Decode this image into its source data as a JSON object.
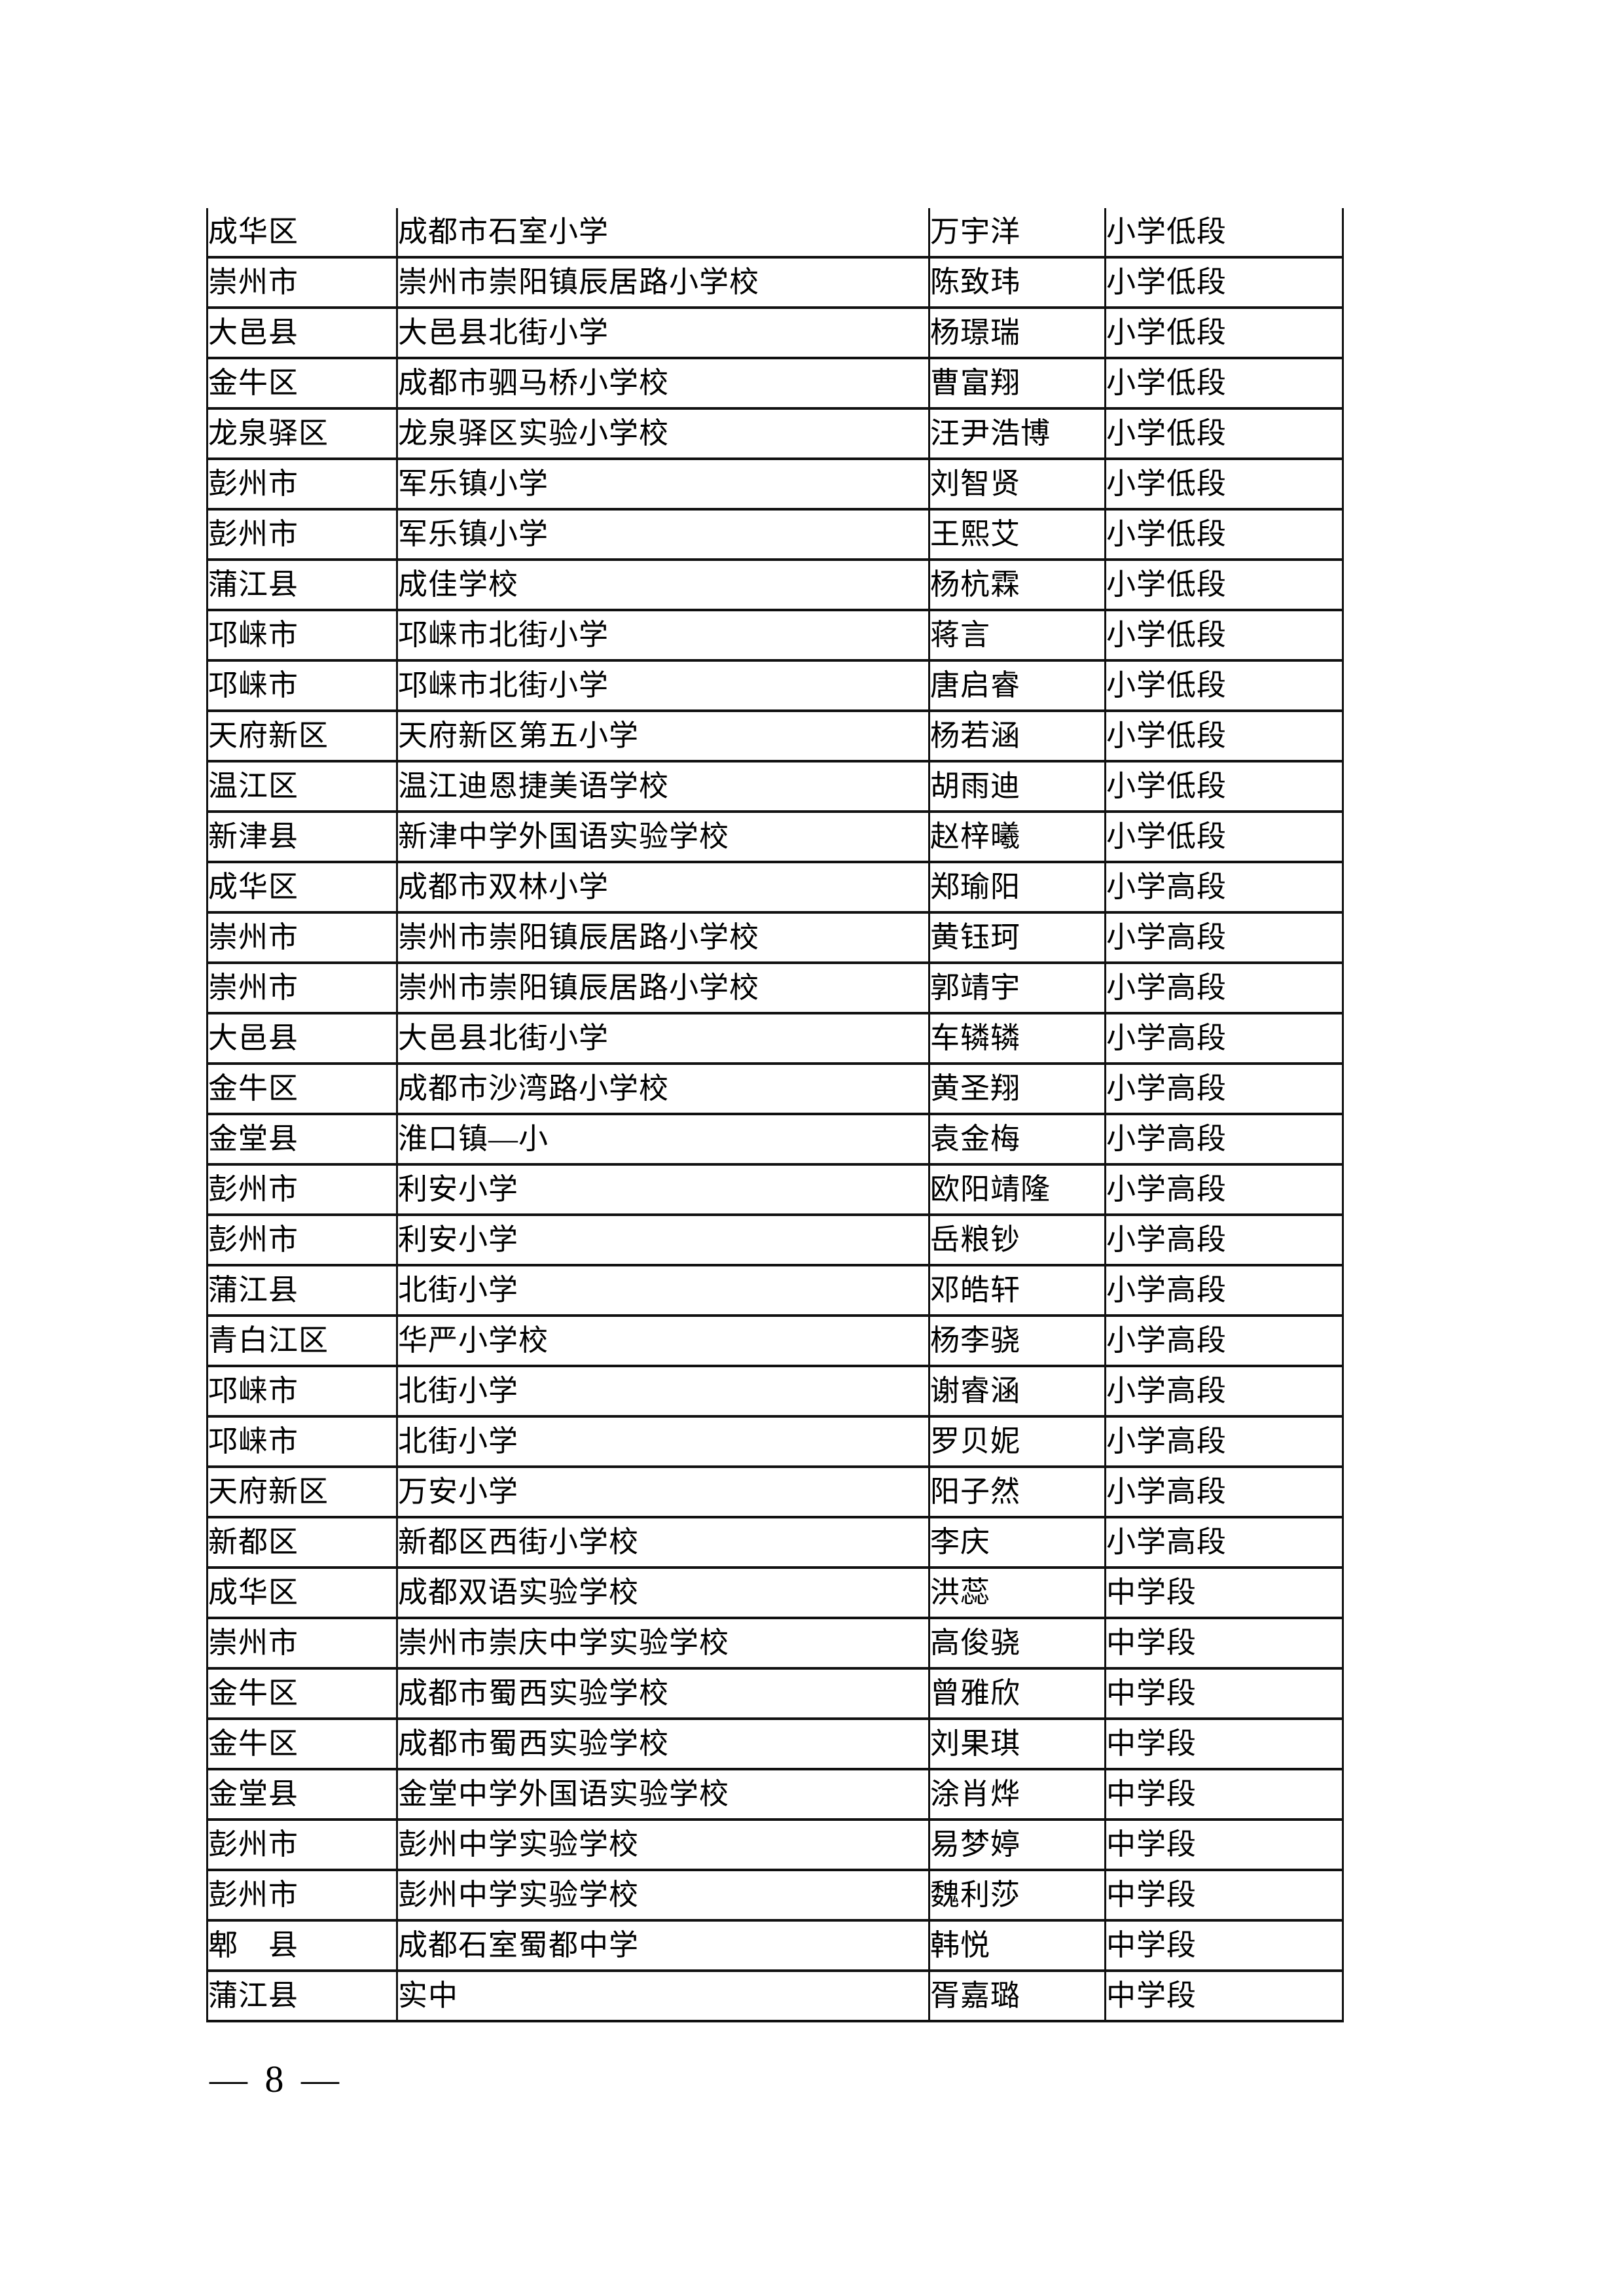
{
  "footer": {
    "page_number": "— 8 —"
  },
  "table": {
    "column_keys": [
      "district",
      "school",
      "name",
      "level"
    ],
    "rows": [
      {
        "district": "成华区",
        "school": "成都市石室小学",
        "name": "万宇洋",
        "level": "小学低段"
      },
      {
        "district": "崇州市",
        "school": "崇州市崇阳镇辰居路小学校",
        "name": "陈致玮",
        "level": "小学低段"
      },
      {
        "district": "大邑县",
        "school": "大邑县北街小学",
        "name": "杨璟瑞",
        "level": "小学低段"
      },
      {
        "district": "金牛区",
        "school": "成都市驷马桥小学校",
        "name": "曹富翔",
        "level": "小学低段"
      },
      {
        "district": "龙泉驿区",
        "school": "龙泉驿区实验小学校",
        "name": "汪尹浩博",
        "level": "小学低段"
      },
      {
        "district": "彭州市",
        "school": "军乐镇小学",
        "name": "刘智贤",
        "level": "小学低段"
      },
      {
        "district": "彭州市",
        "school": "军乐镇小学",
        "name": "王熙艾",
        "level": "小学低段"
      },
      {
        "district": "蒲江县",
        "school": "成佳学校",
        "name": "杨杭霖",
        "level": "小学低段"
      },
      {
        "district": "邛崃市",
        "school": "邛崃市北街小学",
        "name": "蒋言",
        "level": "小学低段"
      },
      {
        "district": "邛崃市",
        "school": "邛崃市北街小学",
        "name": "唐启睿",
        "level": "小学低段"
      },
      {
        "district": "天府新区",
        "school": "天府新区第五小学",
        "name": "杨若涵",
        "level": "小学低段"
      },
      {
        "district": "温江区",
        "school": "温江迪恩捷美语学校",
        "name": "胡雨迪",
        "level": "小学低段"
      },
      {
        "district": "新津县",
        "school": "新津中学外国语实验学校",
        "name": "赵梓曦",
        "level": "小学低段"
      },
      {
        "district": "成华区",
        "school": "成都市双林小学",
        "name": "郑瑜阳",
        "level": "小学高段"
      },
      {
        "district": "崇州市",
        "school": "崇州市崇阳镇辰居路小学校",
        "name": "黄钰珂",
        "level": "小学高段"
      },
      {
        "district": "崇州市",
        "school": "崇州市崇阳镇辰居路小学校",
        "name": "郭靖宇",
        "level": "小学高段"
      },
      {
        "district": "大邑县",
        "school": "大邑县北街小学",
        "name": "车辚辚",
        "level": "小学高段"
      },
      {
        "district": "金牛区",
        "school": "成都市沙湾路小学校",
        "name": "黄圣翔",
        "level": "小学高段"
      },
      {
        "district": "金堂县",
        "school": "淮口镇—小",
        "name": "袁金梅",
        "level": "小学高段"
      },
      {
        "district": "彭州市",
        "school": "利安小学",
        "name": "欧阳靖隆",
        "level": "小学高段"
      },
      {
        "district": "彭州市",
        "school": "利安小学",
        "name": "岳粮钞",
        "level": "小学高段"
      },
      {
        "district": "蒲江县",
        "school": "北街小学",
        "name": "邓皓轩",
        "level": "小学高段"
      },
      {
        "district": "青白江区",
        "school": "华严小学校",
        "name": "杨李骁",
        "level": "小学高段"
      },
      {
        "district": "邛崃市",
        "school": "北街小学",
        "name": "谢睿涵",
        "level": "小学高段"
      },
      {
        "district": "邛崃市",
        "school": "北街小学",
        "name": "罗贝妮",
        "level": "小学高段"
      },
      {
        "district": "天府新区",
        "school": "万安小学",
        "name": "阳子然",
        "level": "小学高段"
      },
      {
        "district": "新都区",
        "school": "新都区西街小学校",
        "name": "李庆",
        "level": "小学高段"
      },
      {
        "district": "成华区",
        "school": "成都双语实验学校",
        "name": "洪蕊",
        "level": "中学段"
      },
      {
        "district": "崇州市",
        "school": "崇州市崇庆中学实验学校",
        "name": "高俊骁",
        "level": "中学段"
      },
      {
        "district": "金牛区",
        "school": "成都市蜀西实验学校",
        "name": "曾雅欣",
        "level": "中学段"
      },
      {
        "district": "金牛区",
        "school": "成都市蜀西实验学校",
        "name": "刘果琪",
        "level": "中学段"
      },
      {
        "district": "金堂县",
        "school": "金堂中学外国语实验学校",
        "name": "涂肖烨",
        "level": "中学段"
      },
      {
        "district": "彭州市",
        "school": "彭州中学实验学校",
        "name": "易梦婷",
        "level": "中学段"
      },
      {
        "district": "彭州市",
        "school": "彭州中学实验学校",
        "name": "魏利莎",
        "level": "中学段"
      },
      {
        "district": "郫　县",
        "school": "成都石室蜀都中学",
        "name": "韩悦",
        "level": "中学段"
      },
      {
        "district": "蒲江县",
        "school": "实中",
        "name": "胥嘉璐",
        "level": "中学段"
      }
    ]
  }
}
